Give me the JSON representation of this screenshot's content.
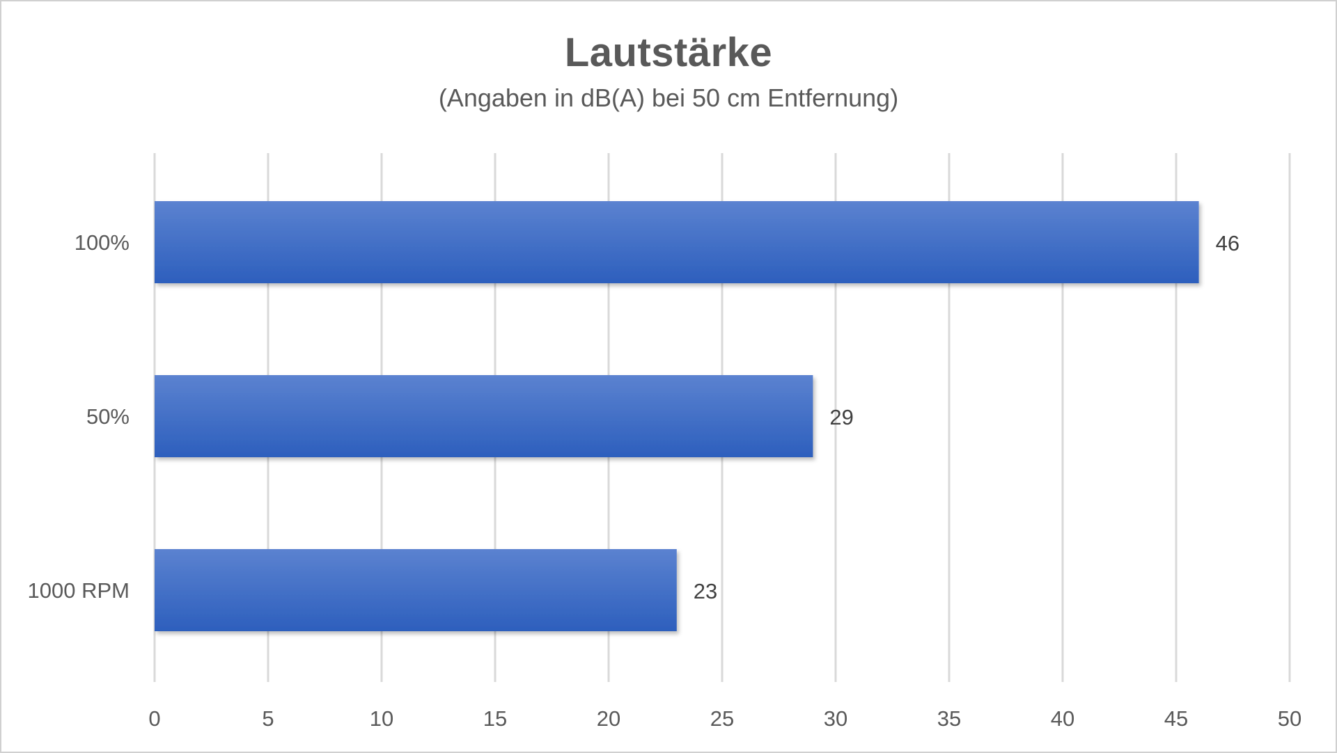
{
  "chart_data": {
    "type": "bar",
    "orientation": "horizontal",
    "title": "Lautstärke",
    "subtitle": "(Angaben in dB(A) bei 50 cm Entfernung)",
    "categories": [
      "100%",
      "50%",
      "1000 RPM"
    ],
    "values": [
      46,
      29,
      23
    ],
    "data_labels": [
      "46",
      "29",
      "23"
    ],
    "xlim": [
      0,
      50
    ],
    "x_ticks": [
      0,
      5,
      10,
      15,
      20,
      25,
      30,
      35,
      40,
      45,
      50
    ],
    "grid": "vertical",
    "legend": "none",
    "colors": {
      "bar_top": "#5b82d0",
      "bar_bottom": "#2d5fbd",
      "grid": "#d9d9d9",
      "text": "#595959"
    }
  }
}
